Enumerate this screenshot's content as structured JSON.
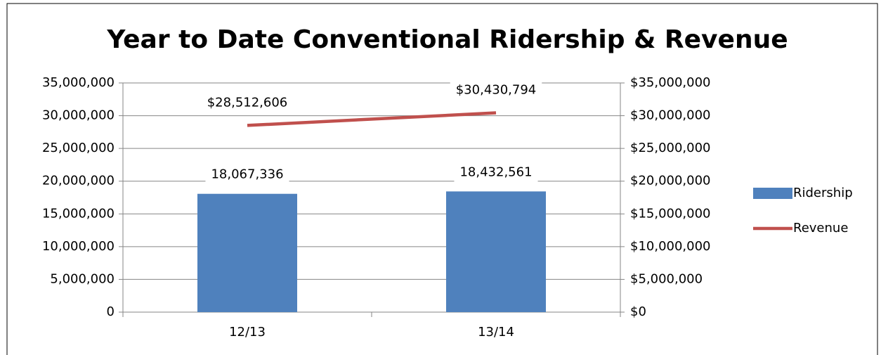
{
  "chart_data": {
    "type": "bar",
    "title": "Year to Date Conventional Ridership & Revenue",
    "categories": [
      "12/13",
      "13/14"
    ],
    "series": [
      {
        "name": "Ridership",
        "type": "bar",
        "color": "#4f81bd",
        "values": [
          18067336,
          18432561
        ],
        "value_labels": [
          "18,067,336",
          "18,432,561"
        ]
      },
      {
        "name": "Revenue",
        "type": "line",
        "axis": "y2",
        "color": "#c0504d",
        "values": [
          28512606,
          30430794
        ],
        "value_labels": [
          "$28,512,606",
          "$30,430,794"
        ]
      }
    ],
    "ylim": [
      0,
      35000000
    ],
    "yticks": [
      0,
      {
        "value": 5000000,
        "label": "5,000,000"
      },
      {
        "value": 10000000,
        "label": "10,000,000"
      },
      {
        "value": 15000000,
        "label": "15,000,000"
      },
      {
        "value": 20000000,
        "label": "20,000,000"
      },
      {
        "value": 25000000,
        "label": "25,000,000"
      },
      {
        "value": 30000000,
        "label": "30,000,000"
      },
      {
        "value": 35000000,
        "label": "35,000,000"
      }
    ],
    "y2lim": [
      0,
      35000000
    ],
    "y2ticks": [
      {
        "value": 0,
        "label": "$0"
      },
      {
        "value": 5000000,
        "label": "$5,000,000"
      },
      {
        "value": 10000000,
        "label": "$10,000,000"
      },
      {
        "value": 15000000,
        "label": "$15,000,000"
      },
      {
        "value": 20000000,
        "label": "$20,000,000"
      },
      {
        "value": 25000000,
        "label": "$25,000,000"
      },
      {
        "value": 30000000,
        "label": "$30,000,000"
      },
      {
        "value": 35000000,
        "label": "$35,000,000"
      }
    ],
    "grid": true,
    "legend": "right"
  }
}
